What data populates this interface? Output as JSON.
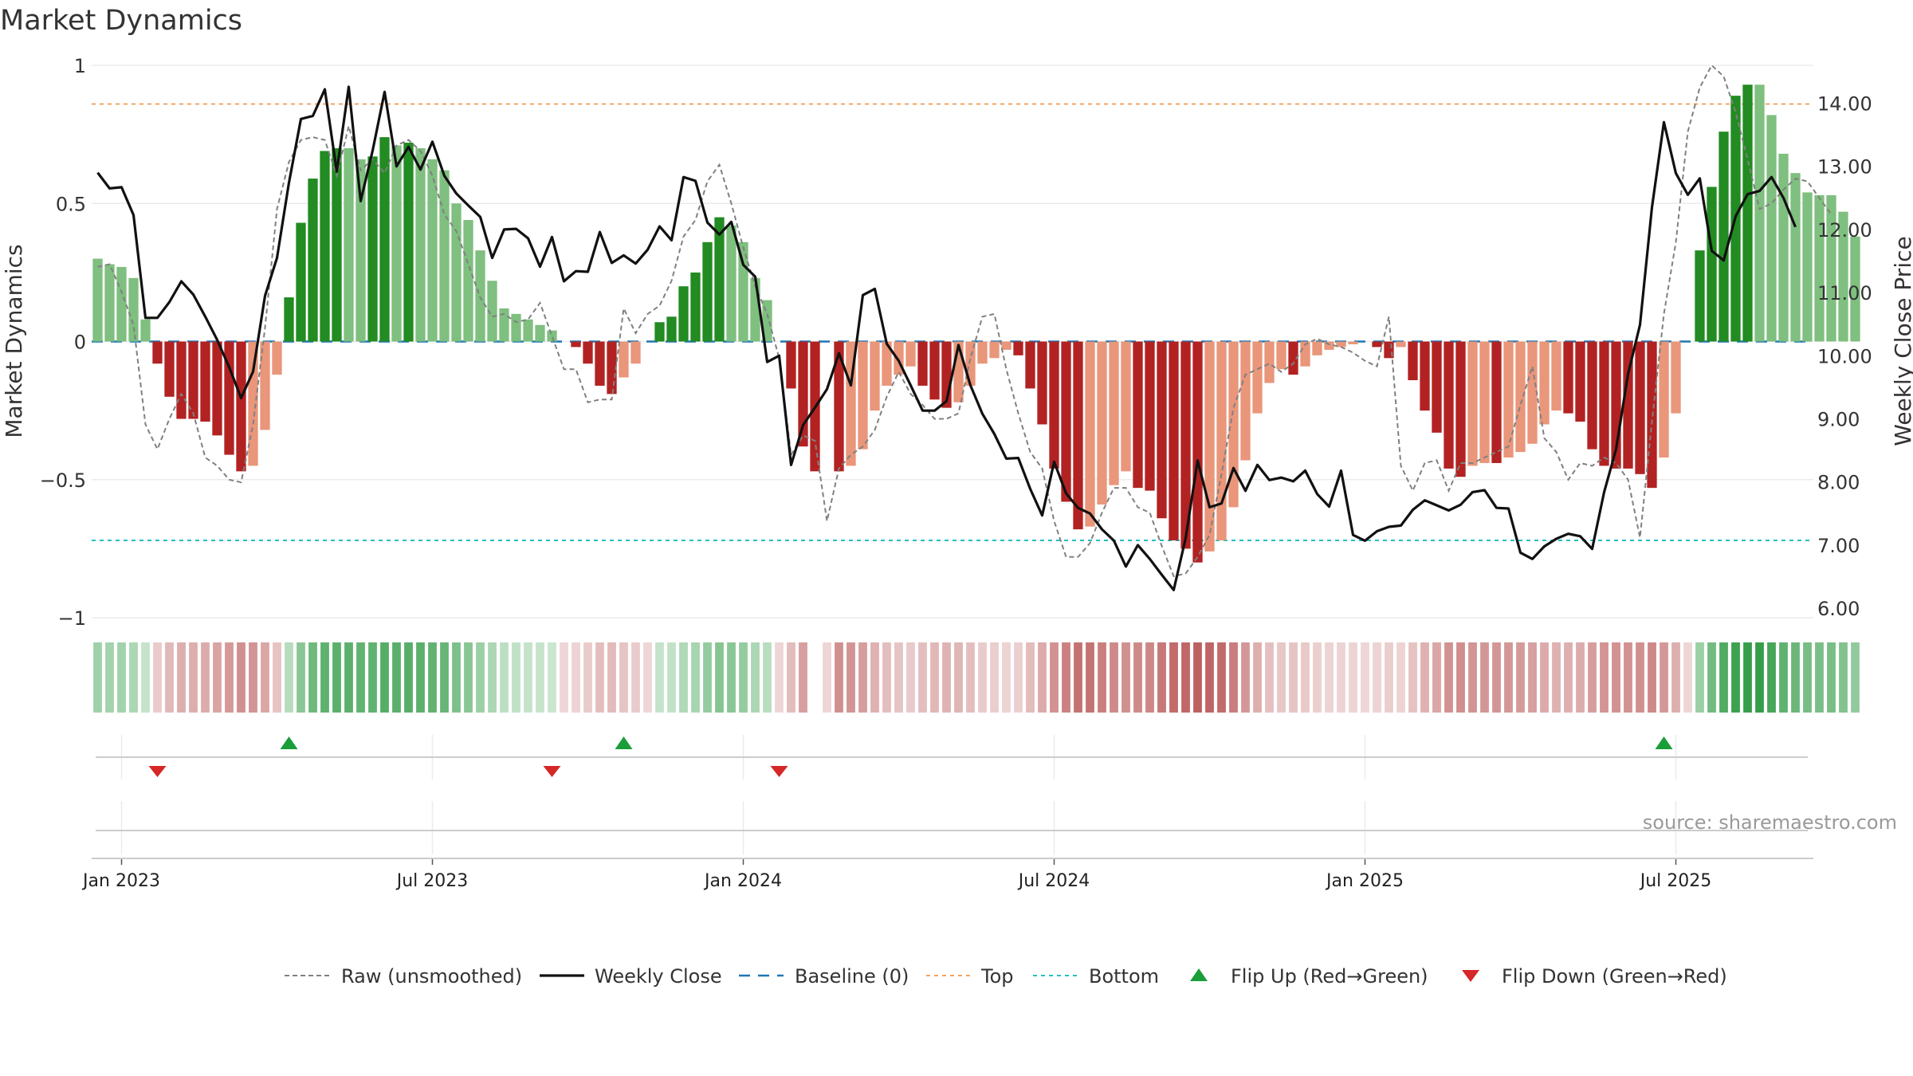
{
  "chart_data": {
    "type": "bar",
    "title": "Market Dynamics",
    "ylabel": "Market Dynamics",
    "y2label": "Weekly Close Price",
    "source": "source: sharemaestro.com",
    "ylim": [
      -1,
      1
    ],
    "y2lim": [
      5.85,
      14.6
    ],
    "y_ticks": [
      1,
      0.5,
      0,
      -0.5,
      -1
    ],
    "y_tick_labels": [
      "1",
      "0.5",
      "0",
      "−0.5",
      "−1"
    ],
    "y2_ticks": [
      6,
      7,
      8,
      9,
      10,
      11,
      12,
      13,
      14
    ],
    "y2_tick_labels": [
      "6.00",
      "7.00",
      "8.00",
      "9.00",
      "10.00",
      "11.00",
      "12.00",
      "13.00",
      "14.00"
    ],
    "x_tick_labels": [
      "Jan 2023",
      "Jul 2023",
      "Jan 2024",
      "Jul 2024",
      "Jan 2025",
      "Jul 2025"
    ],
    "x_tick_weeks": [
      2,
      28,
      54,
      80,
      106,
      132
    ],
    "top_level": 0.86,
    "bottom_level": -0.72,
    "week_count": 144,
    "gap_weeks": [
      60
    ],
    "dynamics": [
      0.3,
      0.28,
      0.27,
      0.23,
      0.08,
      -0.08,
      -0.2,
      -0.28,
      -0.28,
      -0.29,
      -0.34,
      -0.41,
      -0.47,
      -0.45,
      -0.32,
      -0.12,
      0.16,
      0.43,
      0.59,
      0.69,
      0.7,
      0.7,
      0.66,
      0.67,
      0.74,
      0.71,
      0.72,
      0.7,
      0.66,
      0.62,
      0.5,
      0.44,
      0.33,
      0.22,
      0.12,
      0.1,
      0.08,
      0.06,
      0.04,
      0.0,
      -0.02,
      -0.08,
      -0.16,
      -0.19,
      -0.13,
      -0.08,
      0.0,
      0.07,
      0.09,
      0.2,
      0.25,
      0.36,
      0.45,
      0.42,
      0.36,
      0.23,
      0.15,
      0.0,
      -0.17,
      -0.38,
      -0.47,
      0.0,
      -0.47,
      -0.45,
      -0.39,
      -0.25,
      -0.16,
      -0.12,
      -0.09,
      -0.16,
      -0.21,
      -0.24,
      -0.22,
      -0.16,
      -0.08,
      -0.06,
      -0.03,
      -0.05,
      -0.17,
      -0.3,
      -0.46,
      -0.58,
      -0.68,
      -0.67,
      -0.59,
      -0.52,
      -0.47,
      -0.53,
      -0.54,
      -0.64,
      -0.72,
      -0.75,
      -0.8,
      -0.76,
      -0.72,
      -0.6,
      -0.43,
      -0.26,
      -0.15,
      -0.1,
      -0.12,
      -0.09,
      -0.05,
      -0.03,
      -0.02,
      -0.01,
      0.0,
      -0.02,
      -0.06,
      -0.02,
      -0.14,
      -0.25,
      -0.33,
      -0.46,
      -0.49,
      -0.45,
      -0.44,
      -0.44,
      -0.42,
      -0.4,
      -0.37,
      -0.3,
      -0.25,
      -0.26,
      -0.29,
      -0.39,
      -0.45,
      -0.46,
      -0.46,
      -0.48,
      -0.53,
      -0.42,
      -0.26,
      0.0,
      0.33,
      0.56,
      0.76,
      0.89,
      0.93,
      0.93,
      0.82,
      0.68,
      0.61,
      0.54,
      0.53,
      0.53,
      0.47,
      0.38
    ],
    "raw": [
      0.27,
      0.28,
      0.18,
      0.06,
      -0.3,
      -0.39,
      -0.28,
      -0.19,
      -0.26,
      -0.42,
      -0.45,
      -0.5,
      -0.51,
      -0.3,
      0.05,
      0.48,
      0.65,
      0.73,
      0.74,
      0.73,
      0.6,
      0.78,
      0.62,
      0.66,
      0.61,
      0.71,
      0.73,
      0.69,
      0.6,
      0.46,
      0.4,
      0.28,
      0.16,
      0.09,
      0.1,
      0.07,
      0.08,
      0.14,
      0.02,
      -0.1,
      -0.1,
      -0.22,
      -0.21,
      -0.21,
      0.12,
      0.03,
      0.1,
      0.13,
      0.22,
      0.38,
      0.44,
      0.58,
      0.64,
      0.5,
      0.34,
      0.2,
      0.1,
      -0.06,
      -0.41,
      -0.34,
      -0.36,
      -0.65,
      -0.46,
      -0.41,
      -0.38,
      -0.32,
      -0.2,
      -0.11,
      -0.19,
      -0.23,
      -0.28,
      -0.28,
      -0.26,
      -0.06,
      0.09,
      0.1,
      -0.1,
      -0.26,
      -0.4,
      -0.46,
      -0.65,
      -0.78,
      -0.78,
      -0.73,
      -0.62,
      -0.53,
      -0.53,
      -0.6,
      -0.62,
      -0.74,
      -0.85,
      -0.84,
      -0.78,
      -0.7,
      -0.48,
      -0.24,
      -0.12,
      -0.1,
      -0.08,
      -0.11,
      -0.08,
      -0.01,
      0.01,
      -0.01,
      -0.02,
      -0.04,
      -0.07,
      -0.09,
      0.09,
      -0.45,
      -0.54,
      -0.44,
      -0.43,
      -0.54,
      -0.44,
      -0.44,
      -0.42,
      -0.4,
      -0.38,
      -0.23,
      -0.09,
      -0.35,
      -0.4,
      -0.5,
      -0.44,
      -0.45,
      -0.42,
      -0.44,
      -0.5,
      -0.71,
      -0.29,
      0.1,
      0.36,
      0.76,
      0.92,
      1.0,
      0.96,
      0.83,
      0.66,
      0.48,
      0.5,
      0.55,
      0.59,
      0.58,
      0.52,
      0.46
    ],
    "close": [
      12.9,
      12.65,
      12.67,
      12.23,
      10.6,
      10.6,
      10.85,
      11.18,
      10.97,
      10.62,
      10.25,
      9.82,
      9.33,
      9.75,
      10.95,
      11.55,
      12.74,
      13.75,
      13.8,
      14.22,
      12.92,
      14.26,
      12.45,
      13.25,
      14.18,
      13.0,
      13.31,
      12.95,
      13.39,
      12.85,
      12.57,
      12.38,
      12.2,
      11.55,
      12.0,
      12.01,
      11.86,
      11.41,
      11.88,
      11.18,
      11.34,
      11.33,
      11.96,
      11.47,
      11.59,
      11.46,
      11.68,
      12.05,
      11.83,
      12.83,
      12.77,
      12.11,
      11.92,
      12.12,
      11.44,
      11.25,
      9.9,
      10.0,
      8.27,
      8.9,
      9.18,
      9.47,
      10.04,
      9.53,
      10.96,
      11.06,
      10.19,
      9.92,
      9.53,
      9.13,
      9.13,
      9.28,
      10.17,
      9.53,
      9.08,
      8.76,
      8.37,
      8.38,
      7.89,
      7.47,
      8.32,
      7.82,
      7.59,
      7.5,
      7.25,
      7.07,
      6.66,
      7.0,
      6.78,
      6.53,
      6.29,
      7.11,
      8.34,
      7.6,
      7.66,
      8.22,
      7.86,
      8.27,
      8.03,
      8.07,
      8.01,
      8.18,
      7.81,
      7.61,
      8.18,
      7.16,
      7.07,
      7.22,
      7.29,
      7.31,
      7.56,
      7.71,
      7.63,
      7.55,
      7.64,
      7.84,
      7.87,
      7.59,
      7.58,
      6.88,
      6.78,
      6.98,
      7.1,
      7.18,
      7.14,
      6.94,
      7.84,
      8.52,
      9.71,
      10.49,
      12.35,
      13.7,
      12.89,
      12.55,
      12.81,
      11.66,
      11.51,
      12.21,
      12.56,
      12.61,
      12.83,
      12.5,
      12.04
    ],
    "bars": {
      "green_strong": "#228b22",
      "green_light": "#7fbf7f",
      "red_strong": "#b22222",
      "red_light": "#e9967a"
    },
    "strip": {
      "green": "#2e9a43",
      "red": "#b24646"
    },
    "lines": {
      "raw": "#808080",
      "close": "#111111",
      "baseline": "#1f77b4",
      "top": "#f4a460",
      "bottom": "#20c0c0"
    },
    "flip_up_weeks": [
      16,
      44,
      131
    ],
    "flip_down_weeks": [
      5,
      38,
      57
    ],
    "flip_up_color": "#1a9e3a",
    "flip_down_color": "#d62728",
    "legend": [
      {
        "label": "Raw (unsmoothed)",
        "style": "raw"
      },
      {
        "label": "Weekly Close",
        "style": "close"
      },
      {
        "label": "Baseline (0)",
        "style": "baseline"
      },
      {
        "label": "Top",
        "style": "top"
      },
      {
        "label": "Bottom",
        "style": "bottom"
      },
      {
        "label": "Flip Up (Red→Green)",
        "style": "up"
      },
      {
        "label": "Flip Down (Green→Red)",
        "style": "down"
      }
    ],
    "legend_placement": "bottom",
    "grid": true
  }
}
